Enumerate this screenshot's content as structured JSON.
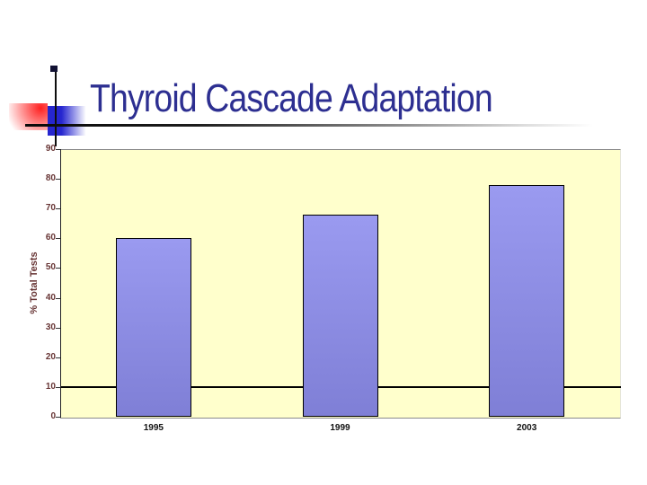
{
  "slide": {
    "title": "Thyroid Cascade Adaptation"
  },
  "colors": {
    "title_text": "#2d2f91",
    "plot_background": "#ffffcc",
    "plot_border": "#8a8a8a",
    "bar_fill_top": "#9a9af0",
    "bar_fill_bottom": "#7f7fd6",
    "bar_border": "#000000",
    "y_axis_text": "#663333",
    "x_axis_text": "#111111",
    "reference_line": "#000000",
    "deco_yellow": "#fdb600",
    "deco_red": "#ff2020",
    "deco_blue": "#2626cf"
  },
  "chart_data": {
    "type": "bar",
    "categories": [
      "1995",
      "1999",
      "2003"
    ],
    "values": [
      60,
      68,
      78
    ],
    "title": "",
    "xlabel": "",
    "ylabel": "% Total Tests",
    "ylim": [
      0,
      90
    ],
    "ytick_step": 10,
    "yticks": [
      0,
      10,
      20,
      30,
      40,
      50,
      60,
      70,
      80,
      90
    ],
    "grid": false,
    "reference_line_y": 10,
    "legend": "none",
    "plot_background": "#ffffcc"
  }
}
